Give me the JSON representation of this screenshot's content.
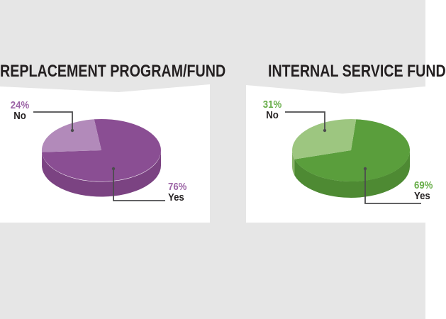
{
  "page": {
    "background_color": "#e6e6e6",
    "panel_color": "#ffffff",
    "text_color": "#231f20",
    "leader_color": "#4c4c4e"
  },
  "charts": [
    {
      "title": "REPLACEMENT PROGRAM/FUND",
      "accent_color": "#9c64a6",
      "colors": {
        "main": "#8a4e93",
        "light": "#b28aba",
        "side": "#7b4382",
        "side_light": "#a37cab"
      },
      "labels": {
        "no_pct": "24%",
        "no_word": "No",
        "yes_pct": "76%",
        "yes_word": "Yes"
      }
    },
    {
      "title": "INTERNAL SERVICE FUND",
      "accent_color": "#67ad48",
      "colors": {
        "main": "#5a9e3c",
        "light": "#9dc680",
        "side": "#4e8a33",
        "side_light": "#88b369"
      },
      "labels": {
        "no_pct": "31%",
        "no_word": "No",
        "yes_pct": "69%",
        "yes_word": "Yes"
      }
    }
  ],
  "chart_data": [
    {
      "type": "pie",
      "title": "REPLACEMENT PROGRAM/FUND",
      "categories": [
        "Yes",
        "No"
      ],
      "values": [
        76,
        24
      ],
      "unit": "%",
      "style": "3d",
      "slice_colors": [
        "#8a4e93",
        "#b28aba"
      ],
      "legend_position": "none",
      "annotations": [
        "24% No",
        "76% Yes"
      ]
    },
    {
      "type": "pie",
      "title": "INTERNAL SERVICE FUND",
      "categories": [
        "Yes",
        "No"
      ],
      "values": [
        69,
        31
      ],
      "unit": "%",
      "style": "3d",
      "slice_colors": [
        "#5a9e3c",
        "#9dc680"
      ],
      "legend_position": "none",
      "annotations": [
        "31% No",
        "69% Yes"
      ]
    }
  ]
}
